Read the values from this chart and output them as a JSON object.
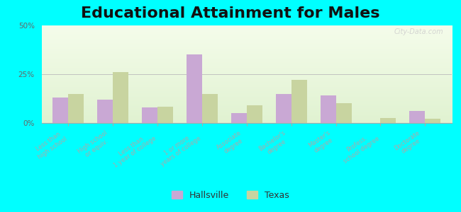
{
  "title": "Educational Attainment for Males",
  "categories": [
    "Less than\nhigh school",
    "High school\nor equiv.",
    "Less than\n1 year of college",
    "1 or more\nyears of college",
    "Associate\ndegree",
    "Bachelor's\ndegree",
    "Master's\ndegree",
    "Profess.\nschool degree",
    "Doctorate\ndegree"
  ],
  "hallsville": [
    13.0,
    12.0,
    8.0,
    35.0,
    5.0,
    15.0,
    14.0,
    0.0,
    6.0
  ],
  "texas": [
    15.0,
    26.0,
    8.5,
    15.0,
    9.0,
    22.0,
    10.0,
    2.5,
    2.0
  ],
  "hallsville_color": "#c9a8d4",
  "texas_color": "#c8d4a0",
  "bg_top_color": "#f0f8e8",
  "bg_bottom_color": "#e0f0d0",
  "outer_background": "#00ffff",
  "ylim": [
    0,
    50
  ],
  "yticks": [
    0,
    25,
    50
  ],
  "ytick_labels": [
    "0%",
    "25%",
    "50%"
  ],
  "title_fontsize": 16,
  "bar_width": 0.35,
  "watermark": "City-Data.com"
}
